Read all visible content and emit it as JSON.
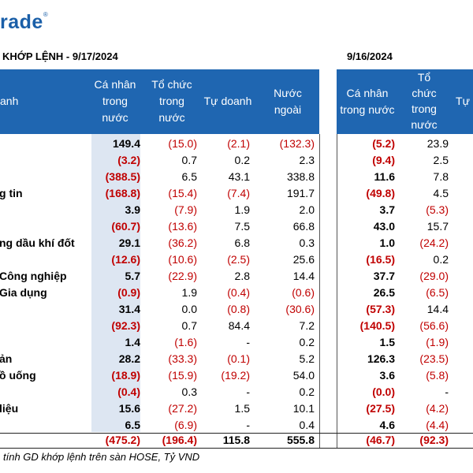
{
  "logo": {
    "text": "rade",
    "mark": "®"
  },
  "titles": {
    "left": "KHỚP LỆNH - 9/17/2024",
    "right": "9/16/2024"
  },
  "headers": {
    "left": [
      "anh",
      "Cá nhân\ntrong\nnước",
      "Tổ chức\ntrong\nnước",
      "Tự doanh",
      "Nước\nngoài"
    ],
    "right": [
      "Cá nhân\ntrong nước",
      "Tổ\nchức\ntrong\nnước",
      "Tự"
    ]
  },
  "rows": [
    {
      "label": "",
      "v": [
        "149.4",
        "(15.0)",
        "(2.1)",
        "(132.3)"
      ],
      "r": [
        "(5.2)",
        "23.9"
      ]
    },
    {
      "label": "",
      "v": [
        "(3.2)",
        "0.7",
        "0.2",
        "2.3"
      ],
      "r": [
        "(9.4)",
        "2.5"
      ]
    },
    {
      "label": "",
      "v": [
        "(388.5)",
        "6.5",
        "43.1",
        "338.8"
      ],
      "r": [
        "11.6",
        "7.8"
      ]
    },
    {
      "label": "g tin",
      "v": [
        "(168.8)",
        "(15.4)",
        "(7.4)",
        "191.7"
      ],
      "r": [
        "(49.8)",
        "4.5"
      ]
    },
    {
      "label": "",
      "v": [
        "3.9",
        "(7.9)",
        "1.9",
        "2.0"
      ],
      "r": [
        "3.7",
        "(5.3)"
      ]
    },
    {
      "label": "",
      "v": [
        "(60.7)",
        "(13.6)",
        "7.5",
        "66.8"
      ],
      "r": [
        "43.0",
        "15.7"
      ]
    },
    {
      "label": "ng dầu khí đốt",
      "v": [
        "29.1",
        "(36.2)",
        "6.8",
        "0.3"
      ],
      "r": [
        "1.0",
        "(24.2)"
      ]
    },
    {
      "label": "",
      "v": [
        "(12.6)",
        "(10.6)",
        "(2.5)",
        "25.6"
      ],
      "r": [
        "(16.5)",
        "0.2"
      ]
    },
    {
      "label": "Công nghiệp",
      "v": [
        "5.7",
        "(22.9)",
        "2.8",
        "14.4"
      ],
      "r": [
        "37.7",
        "(29.0)"
      ]
    },
    {
      "label": "Gia dụng",
      "v": [
        "(0.9)",
        "1.9",
        "(0.4)",
        "(0.6)"
      ],
      "r": [
        "26.5",
        "(6.5)"
      ]
    },
    {
      "label": "",
      "v": [
        "31.4",
        "0.0",
        "(0.8)",
        "(30.6)"
      ],
      "r": [
        "(57.3)",
        "14.4"
      ]
    },
    {
      "label": "",
      "v": [
        "(92.3)",
        "0.7",
        "84.4",
        "7.2"
      ],
      "r": [
        "(140.5)",
        "(56.6)"
      ]
    },
    {
      "label": "",
      "v": [
        "1.4",
        "(1.6)",
        "-",
        "0.2"
      ],
      "r": [
        "1.5",
        "(1.9)"
      ]
    },
    {
      "label": "ản",
      "v": [
        "28.2",
        "(33.3)",
        "(0.1)",
        "5.2"
      ],
      "r": [
        "126.3",
        "(23.5)"
      ]
    },
    {
      "label": "ồ uống",
      "v": [
        "(18.9)",
        "(15.9)",
        "(19.2)",
        "54.0"
      ],
      "r": [
        "3.6",
        "(5.8)"
      ]
    },
    {
      "label": "",
      "v": [
        "(0.4)",
        "0.3",
        "-",
        "0.2"
      ],
      "r": [
        "(0.0)",
        "-"
      ]
    },
    {
      "label": "liệu",
      "v": [
        "15.6",
        "(27.2)",
        "1.5",
        "10.1"
      ],
      "r": [
        "(27.5)",
        "(4.2)"
      ]
    },
    {
      "label": "",
      "v": [
        "6.5",
        "(6.9)",
        "-",
        "0.4"
      ],
      "r": [
        "4.6",
        "(4.4)"
      ]
    }
  ],
  "total": {
    "v": [
      "(475.2)",
      "(196.4)",
      "115.8",
      "555.8"
    ],
    "r": [
      "(46.7)",
      "(92.3)"
    ]
  },
  "footnote": "tính GD khớp lệnh trên sàn HOSE, Tỷ VND",
  "colors": {
    "header_bg": "#1f66b1",
    "negative": "#c00000",
    "shade": "#dde6f2"
  }
}
